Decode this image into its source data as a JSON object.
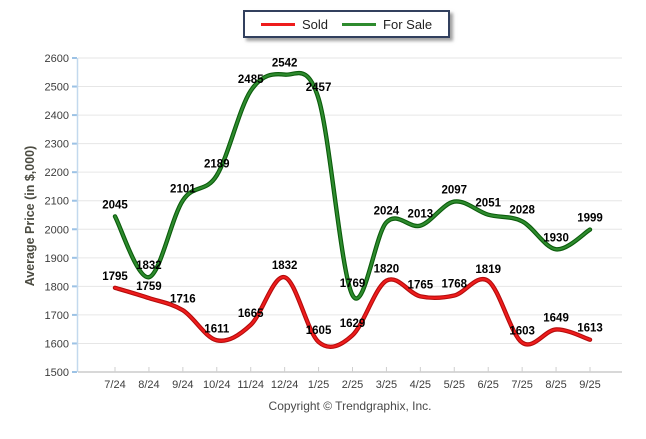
{
  "legend": {
    "items": [
      {
        "label": "Sold",
        "color": "#e81414"
      },
      {
        "label": "For Sale",
        "color": "#156e15"
      }
    ]
  },
  "footer": {
    "text": "Copyright © Trendgraphix, Inc."
  },
  "chart_data": {
    "type": "line",
    "title": "",
    "ylabel": "Average Price (in $,000)",
    "xlabel": "",
    "categories": [
      "7/24",
      "8/24",
      "9/24",
      "10/24",
      "11/24",
      "12/24",
      "1/25",
      "2/25",
      "3/25",
      "4/25",
      "5/25",
      "6/25",
      "7/25",
      "8/25",
      "9/25"
    ],
    "series": [
      {
        "name": "Sold",
        "color": "#ee1c1c",
        "edge_color": "#b30c0c",
        "values": [
          1795,
          1759,
          1716,
          1611,
          1665,
          1832,
          1605,
          1629,
          1820,
          1765,
          1768,
          1819,
          1603,
          1649,
          1613
        ]
      },
      {
        "name": "For Sale",
        "color": "#2e8b2e",
        "edge_color": "#0b5c0b",
        "values": [
          2045,
          1832,
          2101,
          2189,
          2485,
          2542,
          2457,
          1769,
          2024,
          2013,
          2097,
          2051,
          2028,
          1930,
          1999
        ]
      }
    ],
    "ylim": [
      1500,
      2600
    ],
    "ytick_step": 100,
    "grid": true,
    "smooth": true,
    "point_labels": true,
    "legend_position": "top-center",
    "axis_tick_color": "#9cc2e5",
    "grid_color": "#e6e6e6",
    "axis_color": "#b2b2b2",
    "tick_label_color": "#3d3d3d",
    "point_label_color": "#000000"
  }
}
